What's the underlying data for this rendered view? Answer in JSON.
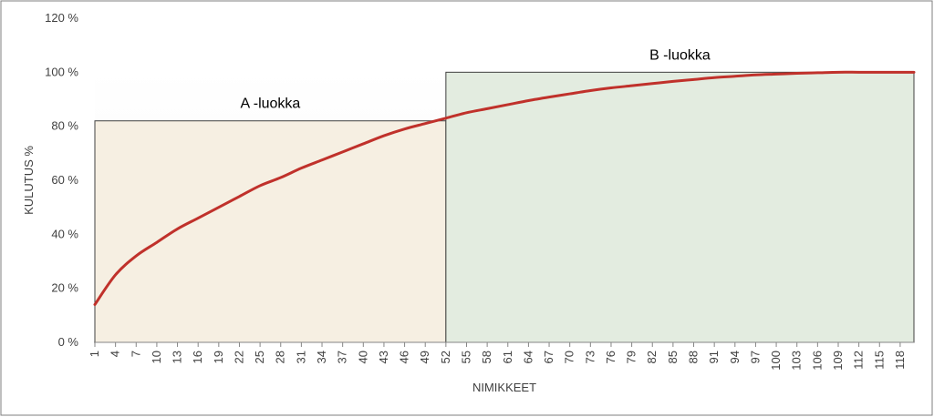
{
  "chart_data": {
    "type": "line",
    "xlabel": "NIMIKKEET",
    "ylabel": "KULUTUS %",
    "ylim": [
      0,
      120
    ],
    "y_ticks": [
      "0 %",
      "20 %",
      "40 %",
      "60 %",
      "80 %",
      "100 %",
      "120 %"
    ],
    "x_ticks": [
      "1",
      "4",
      "7",
      "10",
      "13",
      "16",
      "19",
      "22",
      "25",
      "28",
      "31",
      "34",
      "37",
      "40",
      "43",
      "46",
      "49",
      "52",
      "55",
      "58",
      "61",
      "64",
      "67",
      "70",
      "73",
      "76",
      "79",
      "82",
      "85",
      "88",
      "91",
      "94",
      "97",
      "100",
      "103",
      "106",
      "109",
      "112",
      "115",
      "118"
    ],
    "x_range": [
      1,
      120
    ],
    "grid": false,
    "regions": [
      {
        "label": "A -luokka",
        "x_start": 1,
        "x_end": 52,
        "y_top": 82,
        "color": "#f6efe2"
      },
      {
        "label": "B -luokka",
        "x_start": 52,
        "x_end": 120,
        "y_top": 100,
        "color": "#e3ece0"
      }
    ],
    "series": [
      {
        "color": "#c0312b",
        "x": [
          1,
          4,
          7,
          10,
          13,
          16,
          19,
          22,
          25,
          28,
          31,
          34,
          37,
          40,
          43,
          46,
          49,
          52,
          55,
          58,
          61,
          64,
          67,
          70,
          73,
          76,
          79,
          82,
          85,
          88,
          91,
          94,
          97,
          100,
          103,
          106,
          109,
          112,
          115,
          118,
          120
        ],
        "y": [
          14,
          25,
          32,
          37,
          42,
          46,
          50,
          54,
          58,
          61,
          64.5,
          67.5,
          70.5,
          73.5,
          76.5,
          79,
          81,
          83,
          85,
          86.5,
          88,
          89.5,
          90.8,
          92,
          93.2,
          94.2,
          95,
          95.8,
          96.6,
          97.3,
          98,
          98.5,
          99,
          99.3,
          99.6,
          99.8,
          100,
          100,
          100,
          100,
          100
        ]
      }
    ]
  }
}
